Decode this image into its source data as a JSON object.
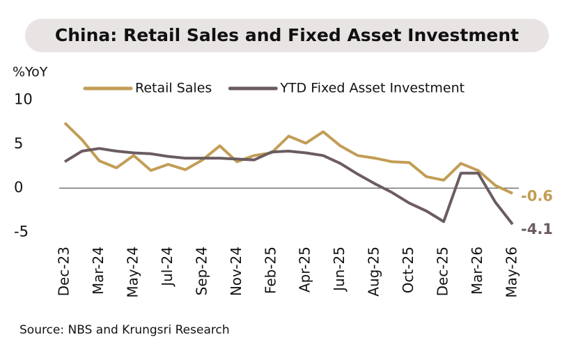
{
  "chart_data": {
    "type": "line",
    "title": "China: Retail Sales and Fixed Asset Investment",
    "y_label": "%YoY",
    "source": "Source: NBS and Krungsri Research",
    "categories": [
      "Dec-23",
      null,
      "Mar-24",
      null,
      "May-24",
      null,
      "Jul-24",
      null,
      "Sep-24",
      null,
      "Nov-24",
      null,
      "Feb-25",
      null,
      "Apr-25",
      null,
      "Jun-25",
      null,
      "Aug-25",
      null,
      "Oct-25",
      null,
      "Dec-25",
      null,
      "Mar-26",
      null,
      "May-26"
    ],
    "series": [
      {
        "name": "Retail Sales",
        "color": "#c29d55",
        "values": [
          7.4,
          5.5,
          3.1,
          2.3,
          3.7,
          2.0,
          2.7,
          2.1,
          3.2,
          4.8,
          3.0,
          3.7,
          4.0,
          5.9,
          5.1,
          6.4,
          4.8,
          3.7,
          3.4,
          3.0,
          2.9,
          1.3,
          0.9,
          2.8,
          2.0,
          0.3,
          -0.6
        ]
      },
      {
        "name": "YTD Fixed Asset Investment",
        "color": "#6b5c61",
        "values": [
          3.0,
          4.2,
          4.5,
          4.2,
          4.0,
          3.9,
          3.6,
          3.4,
          3.4,
          3.4,
          3.3,
          3.2,
          4.1,
          4.2,
          4.0,
          3.7,
          2.8,
          1.6,
          0.5,
          -0.5,
          -1.7,
          -2.6,
          -3.8,
          1.7,
          1.7,
          -1.6,
          -4.1
        ]
      }
    ],
    "ylim": [
      -6,
      11
    ],
    "yticks": [
      10,
      5,
      0,
      -5
    ],
    "grid": false,
    "legend": "top"
  }
}
